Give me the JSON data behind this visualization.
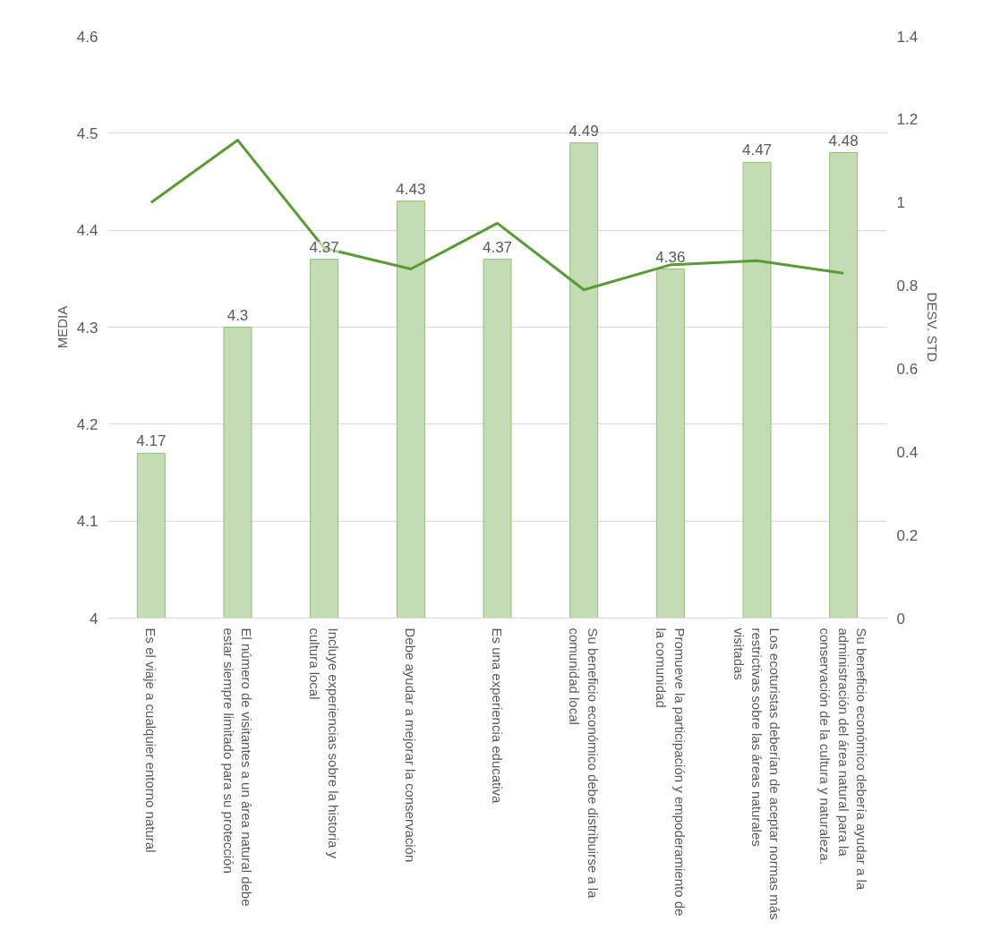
{
  "chart_data": {
    "type": "bar",
    "xlabel": null,
    "ylabel": "MEDIA",
    "y2label": "DESV. STD",
    "categories": [
      "Es el viaje a cualquier entorno natural",
      "El número de visitantes a un área natural debe estar siempre limitado para su protección",
      "Incluye experiencias sobre la historia y cultura local",
      "Debe ayudar a mejorar la conservación",
      "Es una experiencia educativa",
      "Su beneficio económico debe distribuirse a la comunidad local",
      "Promueve la participación y empoderamiento de la comunidad",
      "Los ecoturistas deberían de aceptar normas más restrictivas sobre las áreas naturales visitadas",
      "Su beneficio económico debería ayudar a la administración del área natural para la conservación de la cultura y naturaleza."
    ],
    "series": [
      {
        "color": "#c3dcb3",
        "values": [
          4.17,
          4.3,
          4.37,
          4.43,
          4.37,
          4.49,
          4.36,
          4.47,
          4.48
        ],
        "value_labels": [
          "4.17",
          "4.3",
          "4.37",
          "4.43",
          "4.37",
          "4.49",
          "4.36",
          "4.47",
          "4.48"
        ]
      },
      {
        "type": "line",
        "axis": "y2",
        "color": "#5b9b34",
        "values": [
          1.0,
          1.15,
          0.89,
          0.84,
          0.95,
          0.79,
          0.85,
          0.86,
          0.83
        ]
      }
    ],
    "ylim": [
      4,
      4.6
    ],
    "yticks": [
      4,
      4.1,
      4.2,
      4.3,
      4.4,
      4.5,
      4.6
    ],
    "y2lim": [
      0,
      1.4
    ],
    "y2ticks": [
      0,
      0.2,
      0.4,
      0.6,
      0.8,
      1,
      1.2,
      1.4
    ],
    "grid": "y",
    "marker": "none",
    "line_style": "solid"
  }
}
